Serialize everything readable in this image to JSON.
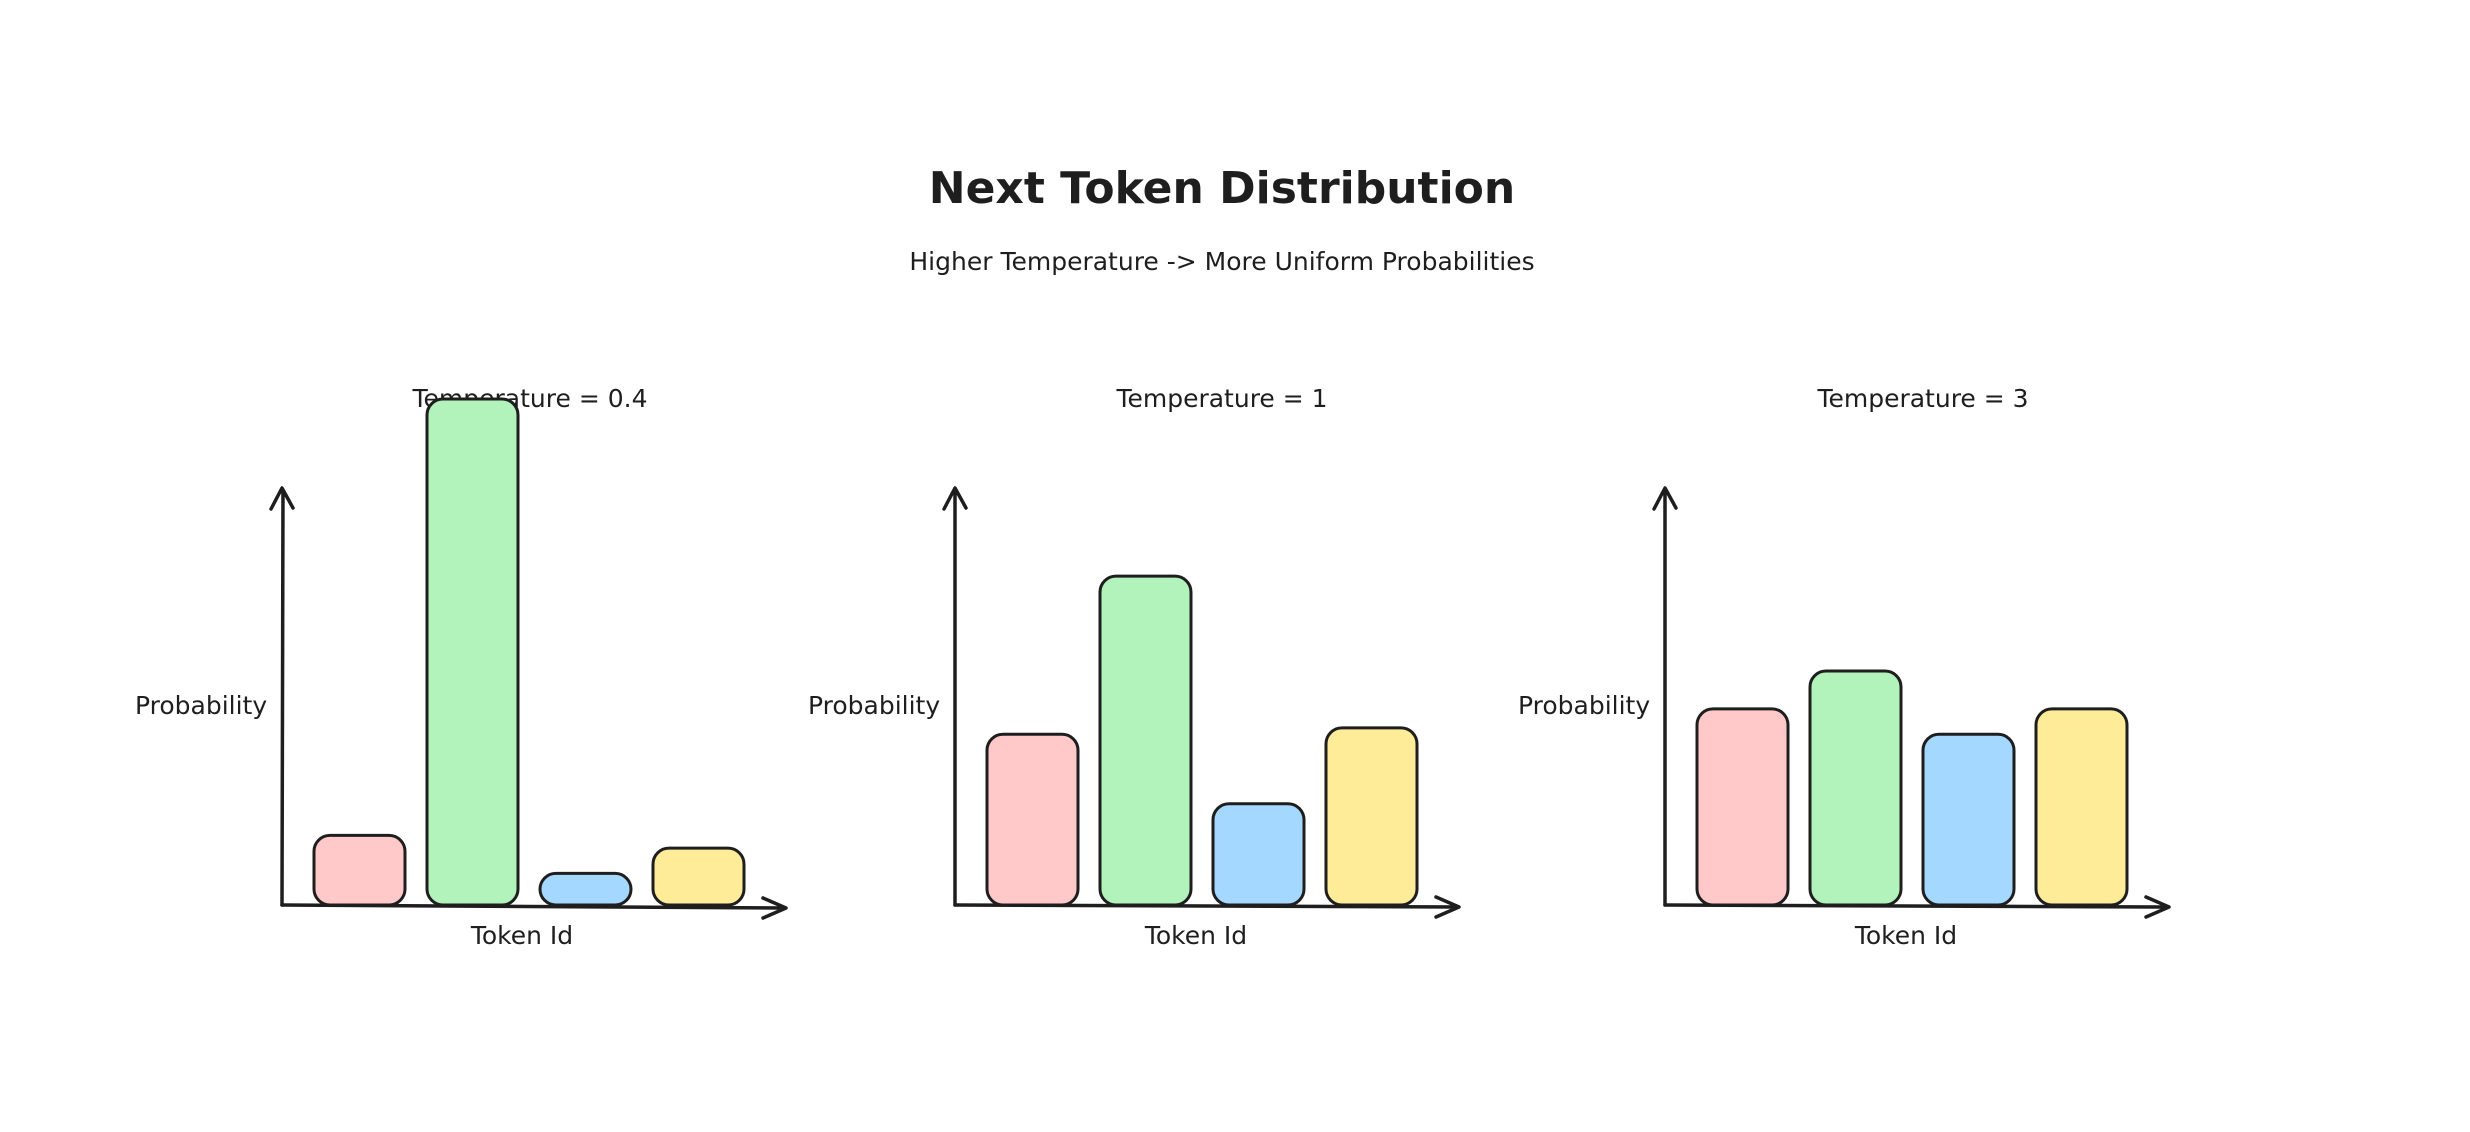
{
  "title": "Next Token Distribution",
  "subtitle": "Higher Temperature -> More Uniform Probabilities",
  "colors": [
    "#ffc9c9",
    "#b2f2bb",
    "#a5d8ff",
    "#ffec99"
  ],
  "chart_data": [
    {
      "type": "bar",
      "title": "Temperature = 0.4",
      "xlabel": "Token Id",
      "ylabel": "Probability",
      "categories": [
        "",
        "",
        "",
        ""
      ],
      "values": [
        0.11,
        0.8,
        0.05,
        0.09
      ]
    },
    {
      "type": "bar",
      "title": "Temperature = 1",
      "xlabel": "Token Id",
      "ylabel": "Probability",
      "categories": [
        "",
        "",
        "",
        ""
      ],
      "values": [
        0.27,
        0.52,
        0.16,
        0.28
      ]
    },
    {
      "type": "bar",
      "title": "Temperature = 3",
      "xlabel": "Token Id",
      "ylabel": "Probability",
      "categories": [
        "",
        "",
        "",
        ""
      ],
      "values": [
        0.31,
        0.37,
        0.27,
        0.31
      ]
    }
  ]
}
